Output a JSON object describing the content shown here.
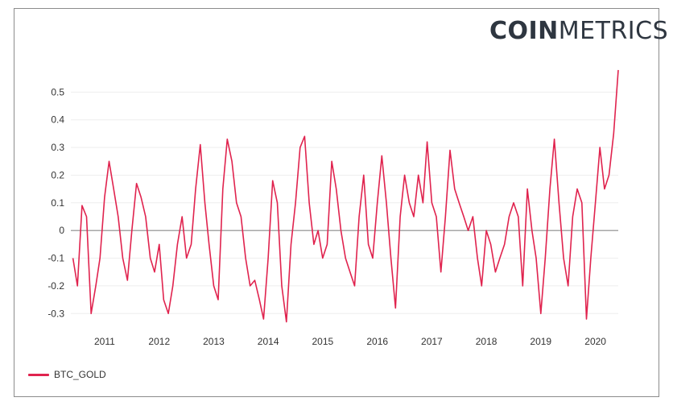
{
  "logo": {
    "bold": "COIN",
    "light": "METRICS"
  },
  "colors": {
    "series": "#e0234e",
    "zero_line": "#8a8a8a",
    "grid": "#eeeeee",
    "logo": "#2e3640"
  },
  "chart_data": {
    "type": "line",
    "title": "",
    "xlabel": "",
    "ylabel": "",
    "ylim": [
      -0.34,
      0.6
    ],
    "xlim": [
      "2010-09-01",
      "2020-09-15"
    ],
    "y_ticks": [
      "0.5",
      "0.4",
      "0.3",
      "0.2",
      "0.1",
      "0",
      "-0.1",
      "-0.2",
      "-0.3"
    ],
    "x_ticks": [
      "2011",
      "2012",
      "2013",
      "2014",
      "2015",
      "2016",
      "2017",
      "2018",
      "2019",
      "2020"
    ],
    "grid": true,
    "legend_position": "bottom-left",
    "series": [
      {
        "name": "BTC_GOLD",
        "x": [
          "2010-09",
          "2010-10",
          "2010-11",
          "2010-12",
          "2011-01",
          "2011-02",
          "2011-03",
          "2011-04",
          "2011-05",
          "2011-06",
          "2011-07",
          "2011-08",
          "2011-09",
          "2011-10",
          "2011-11",
          "2011-12",
          "2012-01",
          "2012-02",
          "2012-03",
          "2012-04",
          "2012-05",
          "2012-06",
          "2012-07",
          "2012-08",
          "2012-09",
          "2012-10",
          "2012-11",
          "2012-12",
          "2013-01",
          "2013-02",
          "2013-03",
          "2013-04",
          "2013-05",
          "2013-06",
          "2013-07",
          "2013-08",
          "2013-09",
          "2013-10",
          "2013-11",
          "2013-12",
          "2014-01",
          "2014-02",
          "2014-03",
          "2014-04",
          "2014-05",
          "2014-06",
          "2014-07",
          "2014-08",
          "2014-09",
          "2014-10",
          "2014-11",
          "2014-12",
          "2015-01",
          "2015-02",
          "2015-03",
          "2015-04",
          "2015-05",
          "2015-06",
          "2015-07",
          "2015-08",
          "2015-09",
          "2015-10",
          "2015-11",
          "2015-12",
          "2016-01",
          "2016-02",
          "2016-03",
          "2016-04",
          "2016-05",
          "2016-06",
          "2016-07",
          "2016-08",
          "2016-09",
          "2016-10",
          "2016-11",
          "2016-12",
          "2017-01",
          "2017-02",
          "2017-03",
          "2017-04",
          "2017-05",
          "2017-06",
          "2017-07",
          "2017-08",
          "2017-09",
          "2017-10",
          "2017-11",
          "2017-12",
          "2018-01",
          "2018-02",
          "2018-03",
          "2018-04",
          "2018-05",
          "2018-06",
          "2018-07",
          "2018-08",
          "2018-09",
          "2018-10",
          "2018-11",
          "2018-12",
          "2019-01",
          "2019-02",
          "2019-03",
          "2019-04",
          "2019-05",
          "2019-06",
          "2019-07",
          "2019-08",
          "2019-09",
          "2019-10",
          "2019-11",
          "2019-12",
          "2020-01",
          "2020-02",
          "2020-03",
          "2020-04",
          "2020-05",
          "2020-06",
          "2020-07",
          "2020-08",
          "2020-09"
        ],
        "y": [
          -0.1,
          -0.2,
          0.09,
          0.05,
          -0.3,
          -0.2,
          -0.1,
          0.12,
          0.25,
          0.15,
          0.05,
          -0.1,
          -0.18,
          0.0,
          0.17,
          0.12,
          0.05,
          -0.1,
          -0.15,
          -0.05,
          -0.25,
          -0.3,
          -0.2,
          -0.05,
          0.05,
          -0.1,
          -0.05,
          0.15,
          0.31,
          0.1,
          -0.05,
          -0.2,
          -0.25,
          0.15,
          0.33,
          0.25,
          0.1,
          0.05,
          -0.1,
          -0.2,
          -0.18,
          -0.25,
          -0.32,
          -0.1,
          0.18,
          0.1,
          -0.2,
          -0.33,
          -0.05,
          0.1,
          0.3,
          0.34,
          0.1,
          -0.05,
          0.0,
          -0.1,
          -0.05,
          0.25,
          0.15,
          0.0,
          -0.1,
          -0.15,
          -0.2,
          0.05,
          0.2,
          -0.05,
          -0.1,
          0.1,
          0.27,
          0.1,
          -0.1,
          -0.28,
          0.05,
          0.2,
          0.1,
          0.05,
          0.2,
          0.1,
          0.32,
          0.1,
          0.05,
          -0.15,
          0.05,
          0.29,
          0.15,
          0.1,
          0.05,
          0.0,
          0.05,
          -0.1,
          -0.2,
          0.0,
          -0.05,
          -0.15,
          -0.1,
          -0.05,
          0.05,
          0.1,
          0.05,
          -0.2,
          0.15,
          0.0,
          -0.1,
          -0.3,
          -0.1,
          0.15,
          0.33,
          0.1,
          -0.1,
          -0.2,
          0.05,
          0.15,
          0.1,
          -0.32,
          -0.1,
          0.1,
          0.3,
          0.15,
          0.2,
          0.35,
          0.58
        ]
      }
    ]
  }
}
